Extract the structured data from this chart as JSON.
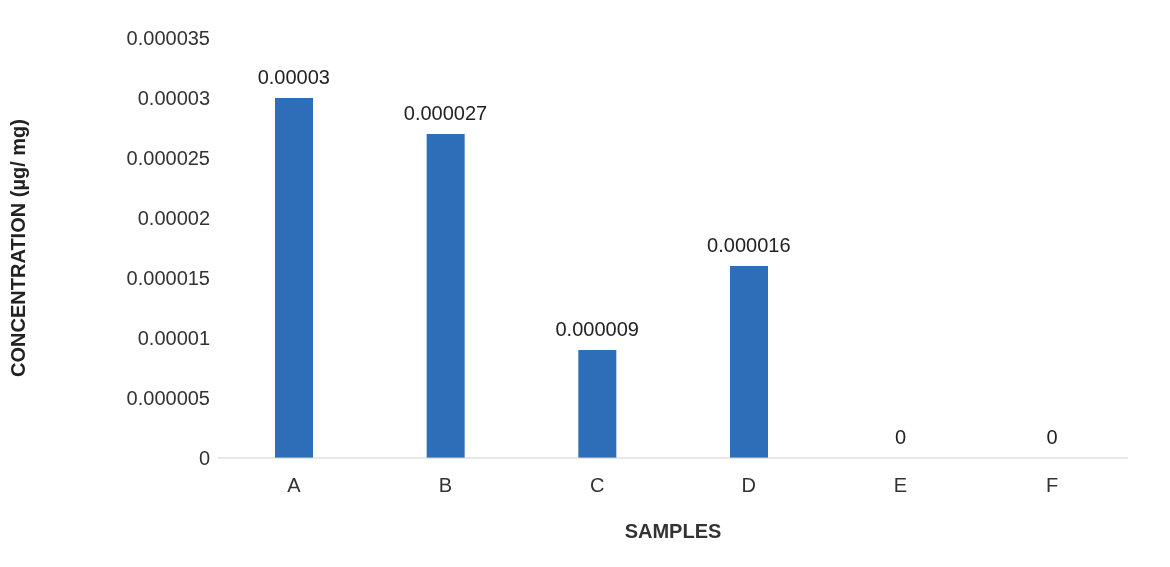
{
  "chart_data": {
    "type": "bar",
    "xlabel": "SAMPLES",
    "ylabel": "CONCENTRATION  (µg/ mg)",
    "categories": [
      "A",
      "B",
      "C",
      "D",
      "E",
      "F"
    ],
    "values": [
      3e-05,
      2.7e-05,
      9e-06,
      1.6e-05,
      0,
      0
    ],
    "value_labels": [
      "0.00003",
      "0.000027",
      "0.000009",
      "0.000016",
      "0",
      "0"
    ],
    "color": "#2e6db8",
    "ylim": [
      0,
      3.5e-05
    ],
    "yticks": [
      0,
      {
        "value": 5e-06,
        "label": "0.000005"
      },
      {
        "value": 1e-05,
        "label": "0.00001"
      },
      {
        "value": 1.5e-05,
        "label": "0.000015"
      },
      {
        "value": 2e-05,
        "label": "0.00002"
      },
      {
        "value": 2.5e-05,
        "label": "0.000025"
      },
      {
        "value": 3e-05,
        "label": "0.00003"
      },
      {
        "value": 3.5e-05,
        "label": "0.000035"
      }
    ],
    "grid": false
  }
}
